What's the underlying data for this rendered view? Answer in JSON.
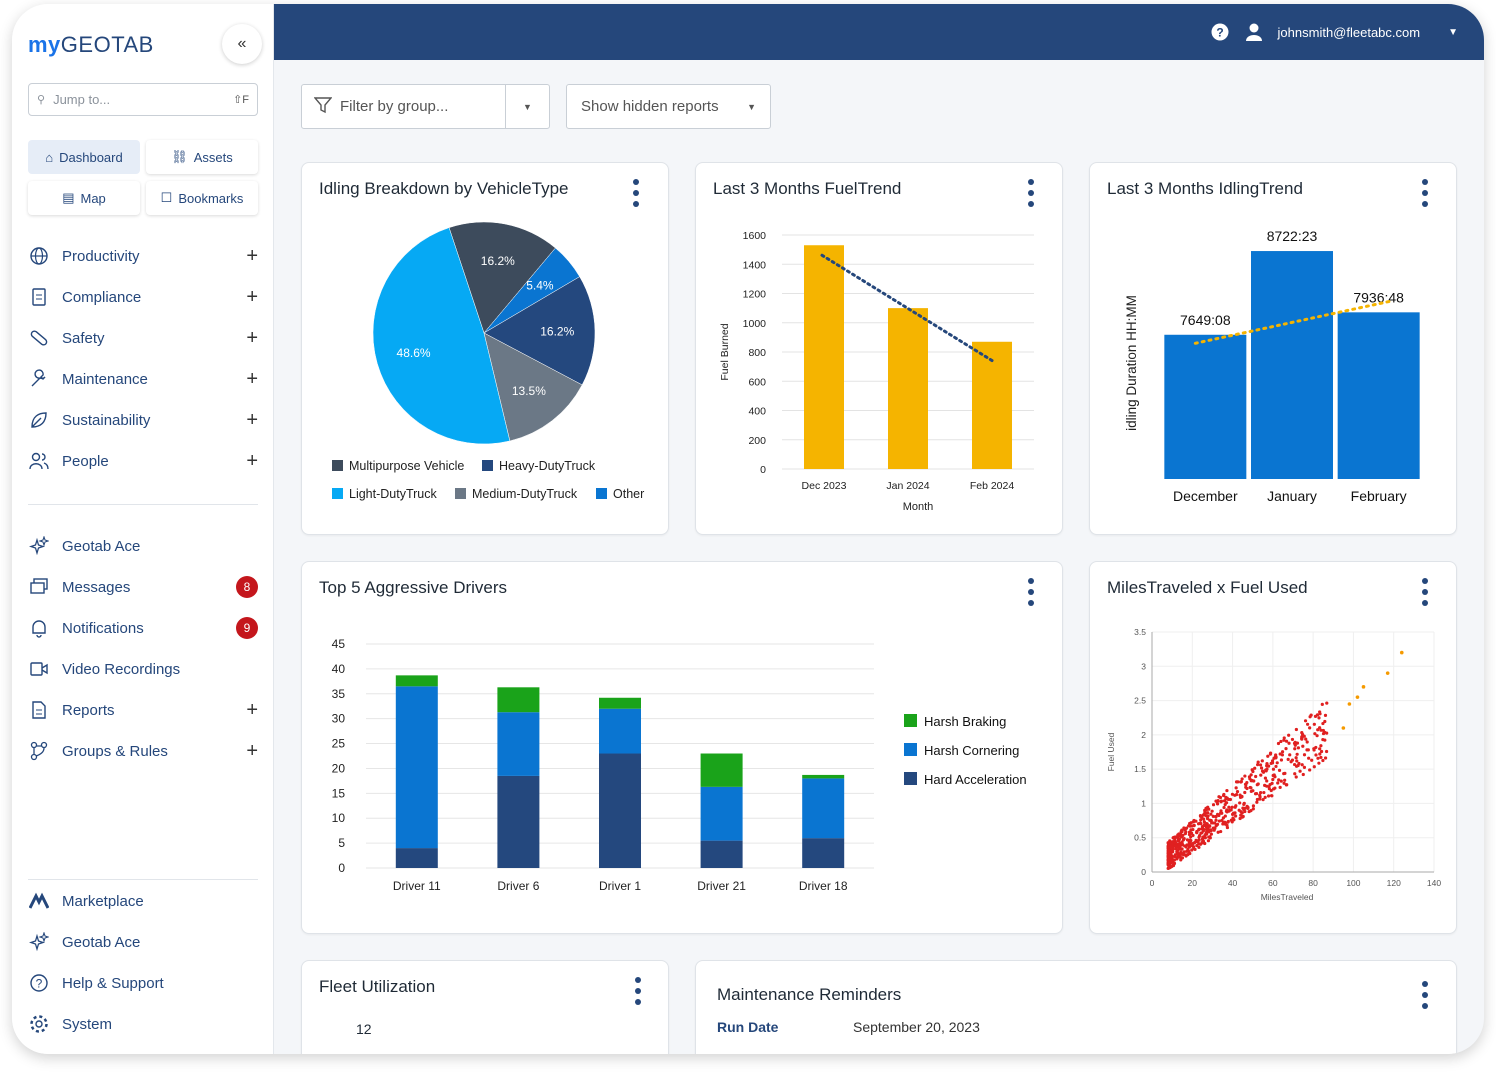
{
  "brand": {
    "prefix": "my",
    "name": "GEOTAB",
    "collapse_icon": "chevrons-left-icon"
  },
  "search": {
    "placeholder": "Jump to...",
    "shortcut": "⇧F"
  },
  "quick_links": [
    {
      "label": "Dashboard",
      "icon": "home-icon",
      "active": true
    },
    {
      "label": "Assets",
      "icon": "truck-icon"
    },
    {
      "label": "Map",
      "icon": "map-icon"
    },
    {
      "label": "Bookmarks",
      "icon": "bookmark-icon"
    }
  ],
  "nav": [
    {
      "label": "Productivity",
      "icon": "globe-icon",
      "expand": "+"
    },
    {
      "label": "Compliance",
      "icon": "clipboard-icon",
      "expand": "+"
    },
    {
      "label": "Safety",
      "icon": "bandage-icon",
      "expand": "+"
    },
    {
      "label": "Maintenance",
      "icon": "wrench-icon",
      "expand": "+"
    },
    {
      "label": "Sustainability",
      "icon": "leaf-icon",
      "expand": "+"
    },
    {
      "label": "People",
      "icon": "people-icon",
      "expand": "+"
    }
  ],
  "nav2": [
    {
      "label": "Geotab Ace",
      "icon": "sparkle-icon"
    },
    {
      "label": "Messages",
      "icon": "messages-icon",
      "badge": "8"
    },
    {
      "label": "Notifications",
      "icon": "bell-icon",
      "badge": "9"
    },
    {
      "label": "Video Recordings",
      "icon": "video-icon"
    },
    {
      "label": "Reports",
      "icon": "report-icon",
      "expand": "+"
    },
    {
      "label": "Groups & Rules",
      "icon": "groups-icon",
      "expand": "+"
    }
  ],
  "nav3": [
    {
      "label": "Marketplace",
      "icon": "marketplace-icon"
    },
    {
      "label": "Geotab Ace",
      "icon": "sparkle-icon"
    },
    {
      "label": "Help & Support",
      "icon": "help-circle-icon"
    },
    {
      "label": "System",
      "icon": "gear-icon"
    }
  ],
  "topbar": {
    "user": "johnsmith@fleetabc.com",
    "help_icon": "help-icon",
    "user_icon": "user-icon"
  },
  "filters": {
    "group_placeholder": "Filter by group...",
    "hidden_reports": "Show hidden reports"
  },
  "colors": {
    "navy": "#25477b",
    "blue": "#0a75d1",
    "amber": "#f5b400",
    "green": "#1aa31a",
    "darknavy": "#24487e"
  },
  "cards": {
    "idling": {
      "title": "Idling Breakdown by VehicleType"
    },
    "fuel": {
      "title": "Last 3 Months FuelTrend"
    },
    "idletrend": {
      "title": "Last 3 Months IdlingTrend"
    },
    "drivers": {
      "title": "Top 5 Aggressive Drivers"
    },
    "scatter": {
      "title": "MilesTraveled x Fuel Used"
    },
    "util": {
      "title": "Fleet Utilization",
      "value": "12"
    },
    "maint": {
      "title": "Maintenance Reminders",
      "run_label": "Run Date",
      "run_value": "September 20, 2023"
    }
  },
  "chart_data": [
    {
      "type": "pie",
      "title": "Idling Breakdown by VehicleType",
      "slices": [
        {
          "name": "Multipurpose Vehicle",
          "value": 16.2,
          "label": "16.2%",
          "color": "#3d4b5c"
        },
        {
          "name": "Other",
          "value": 5.4,
          "label": "5.4%",
          "color": "#0a75d1"
        },
        {
          "name": "Heavy-DutyTruck",
          "value": 16.2,
          "label": "16.2%",
          "color": "#24487e"
        },
        {
          "name": "Medium-DutyTruck",
          "value": 13.5,
          "label": "13.5%",
          "color": "#6b7886"
        },
        {
          "name": "Light-DutyTruck",
          "value": 48.6,
          "label": "48.6%",
          "color": "#06a9f4"
        }
      ],
      "legend": [
        "Multipurpose Vehicle",
        "Heavy-DutyTruck",
        "Light-DutyTruck",
        "Medium-DutyTruck",
        "Other"
      ]
    },
    {
      "type": "bar",
      "title": "Last 3 Months FuelTrend",
      "categories": [
        "Dec 2023",
        "Jan 2024",
        "Feb 2024"
      ],
      "values": [
        1530,
        1100,
        870
      ],
      "xlabel": "Month",
      "ylabel": "Fuel Burned",
      "ylim": [
        0,
        1600
      ],
      "yticks": [
        0,
        200,
        400,
        600,
        800,
        1000,
        1200,
        1400,
        1600
      ],
      "trendline": true
    },
    {
      "type": "bar",
      "title": "Last 3 Months IdlingTrend",
      "categories": [
        "December",
        "January",
        "February"
      ],
      "values": [
        7649.13,
        8722.38,
        7936.8
      ],
      "labels": [
        "7649:08",
        "8722:23",
        "7936:48"
      ],
      "ylabel": "idling Duration HH:MM",
      "trendline": true
    },
    {
      "type": "bar",
      "stacked": true,
      "title": "Top 5 Aggressive Drivers",
      "categories": [
        "Driver 11",
        "Driver 6",
        "Driver 1",
        "Driver 21",
        "Driver 18"
      ],
      "series": [
        {
          "name": "Hard Acceleration",
          "values": [
            4,
            18.5,
            23,
            5.5,
            6
          ]
        },
        {
          "name": "Harsh Cornering",
          "values": [
            32.5,
            12.8,
            9,
            10.8,
            12
          ]
        },
        {
          "name": "Harsh Braking",
          "values": [
            2.2,
            5,
            2.2,
            6.7,
            0.7
          ]
        }
      ],
      "legend": [
        "Harsh Braking",
        "Harsh Cornering",
        "Hard Acceleration"
      ],
      "ylim": [
        0,
        45
      ],
      "yticks": [
        0,
        5,
        10,
        15,
        20,
        25,
        30,
        35,
        40,
        45
      ]
    },
    {
      "type": "scatter",
      "title": "MilesTraveled x Fuel Used",
      "xlabel": "MilesTraveled",
      "ylabel": "Fuel Used",
      "xlim": [
        0,
        140
      ],
      "ylim": [
        0,
        3.5
      ],
      "xticks": [
        0,
        20,
        40,
        60,
        80,
        100,
        120,
        140
      ],
      "yticks": [
        0,
        0.5,
        1,
        1.5,
        2,
        2.5,
        3,
        3.5
      ],
      "trend": {
        "slope": 0.0235,
        "intercept": 0.05
      },
      "orange_points": [
        [
          124,
          3.2
        ],
        [
          117,
          2.9
        ],
        [
          105,
          2.7
        ],
        [
          102,
          2.55
        ],
        [
          98,
          2.45
        ],
        [
          95,
          2.1
        ]
      ]
    }
  ]
}
